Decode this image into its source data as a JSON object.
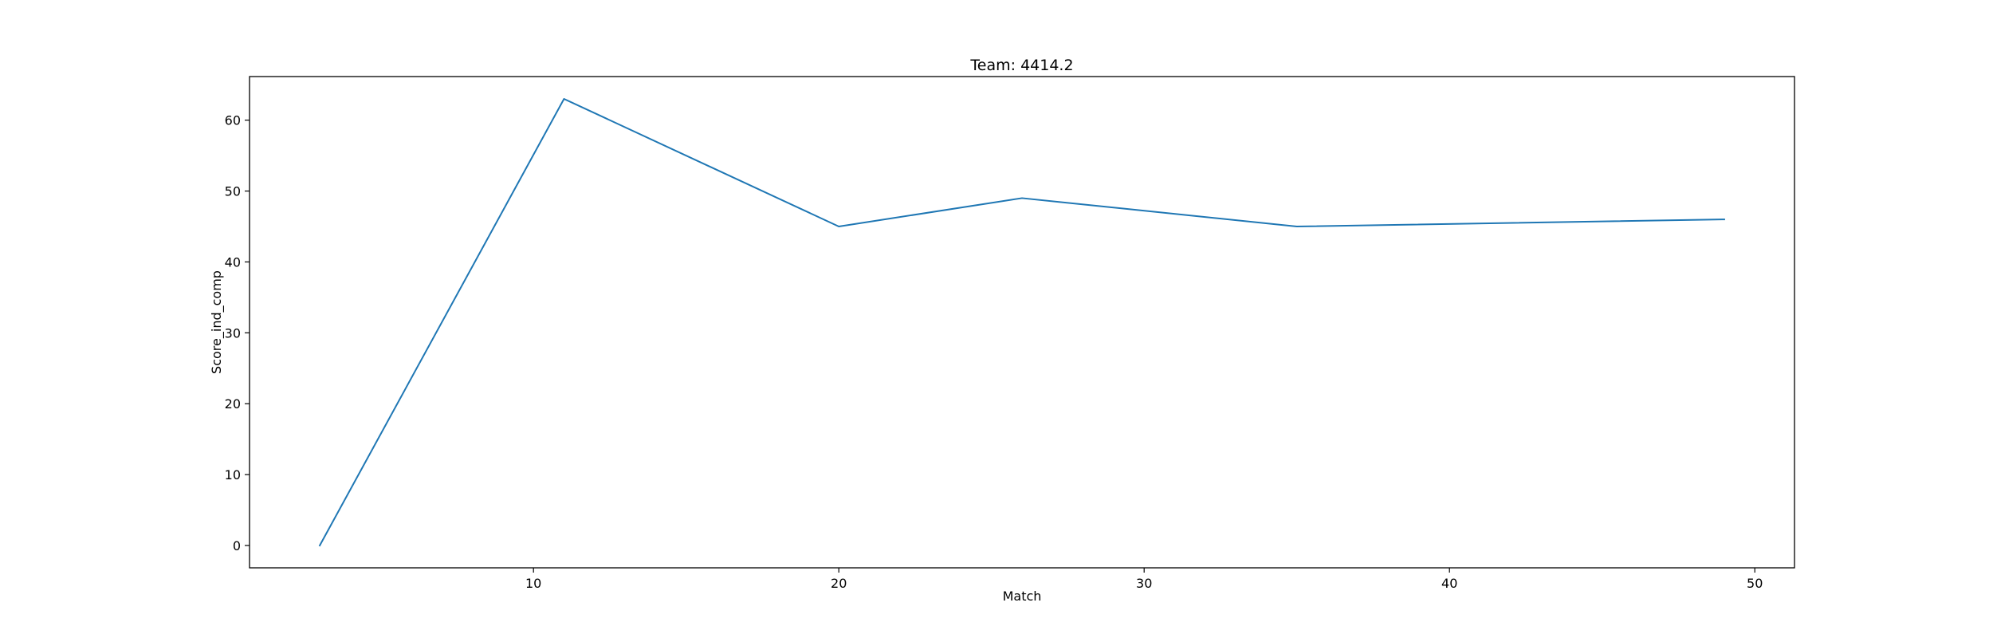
{
  "chart_data": {
    "type": "line",
    "title": "Team: 4414.2",
    "xlabel": "Match",
    "ylabel": "Score_ind_comp",
    "x": [
      3,
      11,
      20,
      26,
      35,
      49
    ],
    "series": [
      {
        "values": [
          0,
          63,
          45,
          49,
          45,
          46
        ],
        "color": "#1f77b4"
      }
    ],
    "xlim": [
      0.7,
      51.3
    ],
    "ylim": [
      -3.15,
      66.15
    ],
    "xticks": [
      10,
      20,
      30,
      40,
      50
    ],
    "yticks": [
      0,
      10,
      20,
      30,
      40,
      50,
      60
    ],
    "grid": false,
    "legend": "none"
  }
}
